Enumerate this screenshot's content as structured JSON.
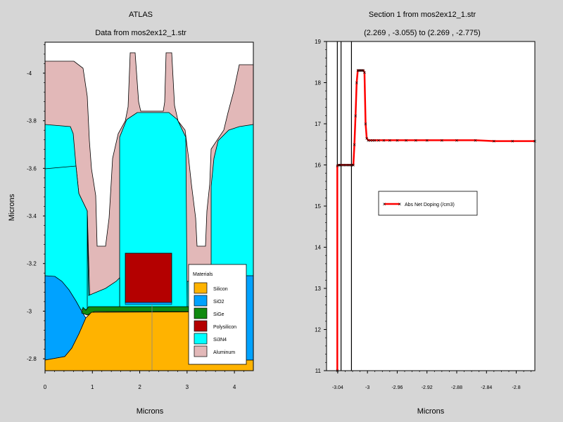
{
  "chart_data": [
    {
      "type": "structure",
      "title": "ATLAS",
      "subtitle": "Data from mos2ex12_1.str",
      "xlabel": "Microns",
      "ylabel": "Microns",
      "xlim": [
        0,
        4.4
      ],
      "ylim": [
        -2.75,
        -4.13
      ],
      "xticks": [
        "0",
        "1",
        "2",
        "3",
        "4"
      ],
      "yticks": [
        "-4",
        "-3.8",
        "-3.6",
        "-3.4",
        "-3.2",
        "-3",
        "-2.8"
      ],
      "legend_title": "Materials",
      "materials": [
        {
          "name": "Silicon",
          "color": "#ffb300"
        },
        {
          "name": "SiO2",
          "color": "#00a2ff"
        },
        {
          "name": "SiGe",
          "color": "#108a10"
        },
        {
          "name": "Polysilicon",
          "color": "#b40000"
        },
        {
          "name": "Si3N4",
          "color": "#00ffff"
        },
        {
          "name": "Aluminum",
          "color": "#e2b8b8"
        }
      ]
    },
    {
      "type": "line",
      "title": "Section 1 from mos2ex12_1.str",
      "subtitle": "(2.269 , -3.055) to (2.269 , -2.775)",
      "xlabel": "Microns",
      "ylabel": "",
      "xlim": [
        -3.055,
        -2.775
      ],
      "ylim": [
        11,
        19
      ],
      "xticks": [
        "-3.04",
        "-3",
        "-2.96",
        "-2.92",
        "-2.88",
        "-2.84",
        "-2.8"
      ],
      "yticks": [
        "11",
        "12",
        "13",
        "14",
        "15",
        "16",
        "17",
        "18",
        "19"
      ],
      "vlines": [
        -3.0405,
        -3.0355,
        -3.0215
      ],
      "series": [
        {
          "name": "Abs Net Doping (/cm3)",
          "color": "#ff0000",
          "x": [
            -3.0405,
            -3.0405,
            -3.039,
            -3.0375,
            -3.036,
            -3.034,
            -3.032,
            -3.03,
            -3.028,
            -3.026,
            -3.024,
            -3.022,
            -3.0205,
            -3.019,
            -3.0175,
            -3.016,
            -3.0145,
            -3.013,
            -3.0115,
            -3.01,
            -3.0085,
            -3.007,
            -3.0055,
            -3.004,
            -3.0025,
            -3.001,
            -2.999,
            -2.996,
            -2.993,
            -2.99,
            -2.985,
            -2.978,
            -2.97,
            -2.96,
            -2.948,
            -2.935,
            -2.92,
            -2.9,
            -2.88,
            -2.855,
            -2.83,
            -2.805,
            -2.775
          ],
          "values": [
            11,
            15.98,
            16.0,
            16.0,
            16.0,
            16.0,
            16.0,
            16.0,
            16.0,
            16.0,
            16.0,
            16.0,
            16.0,
            16.0,
            16.5,
            17.2,
            18.0,
            18.3,
            18.3,
            18.3,
            18.3,
            18.3,
            18.3,
            18.25,
            17.0,
            16.65,
            16.6,
            16.6,
            16.6,
            16.6,
            16.6,
            16.6,
            16.6,
            16.6,
            16.6,
            16.6,
            16.6,
            16.6,
            16.6,
            16.6,
            16.58,
            16.58,
            16.58
          ]
        }
      ]
    }
  ]
}
